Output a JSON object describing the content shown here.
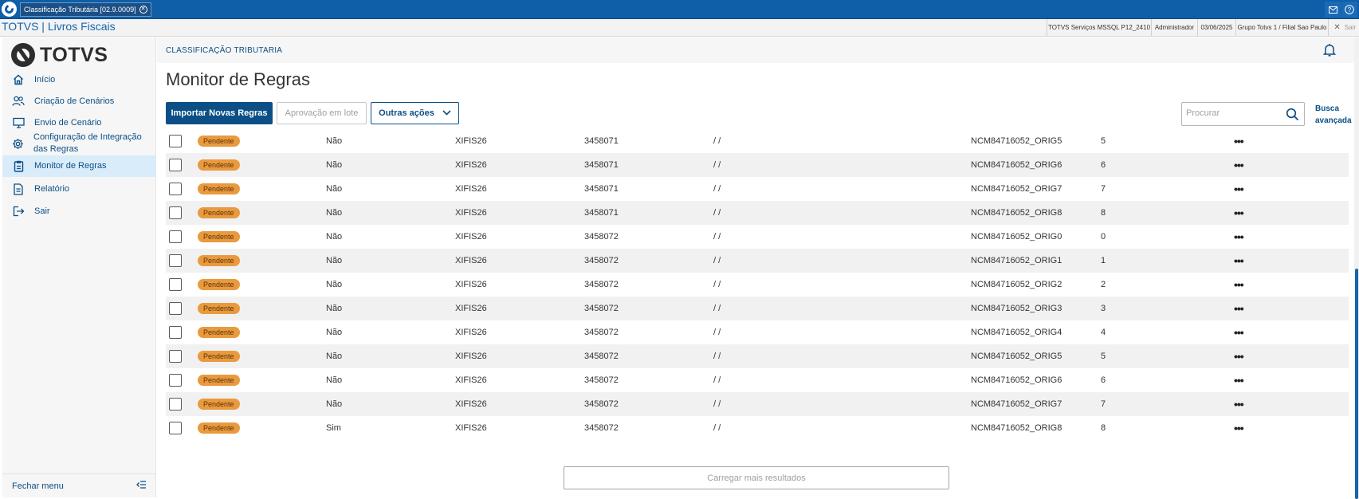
{
  "window": {
    "tab_title": "Classificação Tributária [02.9.0009]",
    "tab_close": "✕"
  },
  "infobar": {
    "brand": "TOTVS | Livros Fiscais",
    "environment": "TOTVS Serviços MSSQL P12_2410",
    "user": "Administrador",
    "date": "03/06/2025",
    "branch": "Grupo Totvs 1 / Filial Sao Paulo",
    "logout_label": "Sair"
  },
  "sidebar": {
    "logo_text": "TOTVS",
    "items": [
      {
        "label": "Início",
        "icon": "home-icon"
      },
      {
        "label": "Criação de Cenários",
        "icon": "users-icon"
      },
      {
        "label": "Envio de Cenário",
        "icon": "monitor-icon"
      },
      {
        "label": "Configuração de Integração das Regras",
        "icon": "gear-icon"
      },
      {
        "label": "Monitor de Regras",
        "icon": "clipboard-icon",
        "active": true
      },
      {
        "label": "Relatório",
        "icon": "document-icon"
      },
      {
        "label": "Sair",
        "icon": "exit-icon"
      }
    ],
    "footer_label": "Fechar menu"
  },
  "header": {
    "breadcrumb": "CLASSIFICAÇÃO TRIBUTARIA"
  },
  "page": {
    "title": "Monitor de Regras",
    "btn_import": "Importar Novas Regras",
    "btn_batch": "Aprovação em lote",
    "btn_other": "Outras ações",
    "search_placeholder": "Procurar",
    "advanced_search_line1": "Busca",
    "advanced_search_line2": "avançada",
    "load_more": "Carregar mais resultados"
  },
  "table": {
    "rows": [
      {
        "status": "Pendente",
        "flag": "Não",
        "code": "XIFIS26",
        "num": "3458071",
        "date": "/ /",
        "rule": "NCM84716052_ORIG5",
        "seq": "5"
      },
      {
        "status": "Pendente",
        "flag": "Não",
        "code": "XIFIS26",
        "num": "3458071",
        "date": "/ /",
        "rule": "NCM84716052_ORIG6",
        "seq": "6"
      },
      {
        "status": "Pendente",
        "flag": "Não",
        "code": "XIFIS26",
        "num": "3458071",
        "date": "/ /",
        "rule": "NCM84716052_ORIG7",
        "seq": "7"
      },
      {
        "status": "Pendente",
        "flag": "Não",
        "code": "XIFIS26",
        "num": "3458071",
        "date": "/ /",
        "rule": "NCM84716052_ORIG8",
        "seq": "8"
      },
      {
        "status": "Pendente",
        "flag": "Não",
        "code": "XIFIS26",
        "num": "3458072",
        "date": "/ /",
        "rule": "NCM84716052_ORIG0",
        "seq": "0"
      },
      {
        "status": "Pendente",
        "flag": "Não",
        "code": "XIFIS26",
        "num": "3458072",
        "date": "/ /",
        "rule": "NCM84716052_ORIG1",
        "seq": "1"
      },
      {
        "status": "Pendente",
        "flag": "Não",
        "code": "XIFIS26",
        "num": "3458072",
        "date": "/ /",
        "rule": "NCM84716052_ORIG2",
        "seq": "2"
      },
      {
        "status": "Pendente",
        "flag": "Não",
        "code": "XIFIS26",
        "num": "3458072",
        "date": "/ /",
        "rule": "NCM84716052_ORIG3",
        "seq": "3"
      },
      {
        "status": "Pendente",
        "flag": "Não",
        "code": "XIFIS26",
        "num": "3458072",
        "date": "/ /",
        "rule": "NCM84716052_ORIG4",
        "seq": "4"
      },
      {
        "status": "Pendente",
        "flag": "Não",
        "code": "XIFIS26",
        "num": "3458072",
        "date": "/ /",
        "rule": "NCM84716052_ORIG5",
        "seq": "5"
      },
      {
        "status": "Pendente",
        "flag": "Não",
        "code": "XIFIS26",
        "num": "3458072",
        "date": "/ /",
        "rule": "NCM84716052_ORIG6",
        "seq": "6"
      },
      {
        "status": "Pendente",
        "flag": "Não",
        "code": "XIFIS26",
        "num": "3458072",
        "date": "/ /",
        "rule": "NCM84716052_ORIG7",
        "seq": "7"
      },
      {
        "status": "Pendente",
        "flag": "Sim",
        "code": "XIFIS26",
        "num": "3458072",
        "date": "/ /",
        "rule": "NCM84716052_ORIG8",
        "seq": "8"
      }
    ]
  },
  "colors": {
    "primary": "#0b4f86",
    "titlebar": "#0e5ea8",
    "badge": "#ea9a3e",
    "active_nav": "#d9ecfa"
  }
}
